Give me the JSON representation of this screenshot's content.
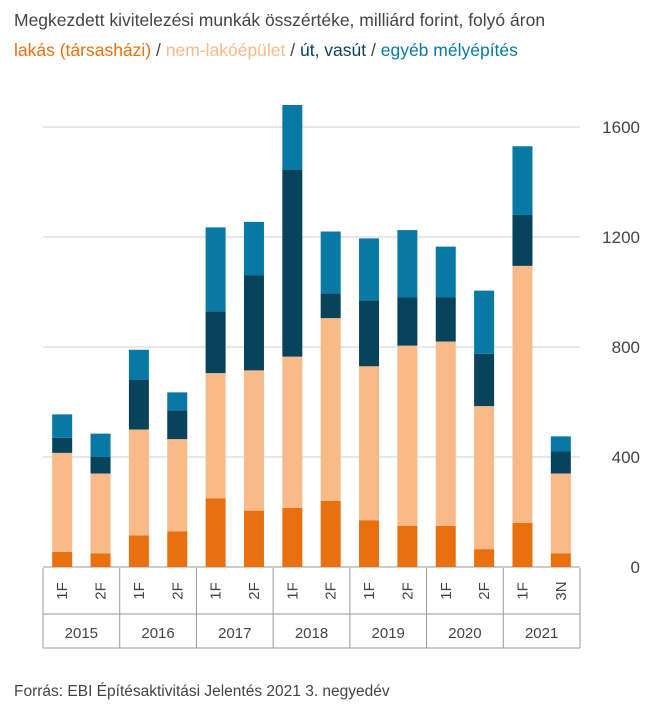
{
  "title": "Megkezdett kivitelezési munkák összértéke, milliárd forint, folyó áron",
  "legend": [
    {
      "label": "lakás (társasházi)",
      "color": "#E8700E"
    },
    {
      "label": "nem-lakóépület",
      "color": "#F8BA88"
    },
    {
      "label": "út, vasút",
      "color": "#07435A"
    },
    {
      "label": "egyéb mélyépítés",
      "color": "#0878A4"
    }
  ],
  "legend_separator": " / ",
  "source": "Forrás: EBI Építésaktivitási Jelentés 2021 3. negyedév",
  "chart_data": {
    "type": "bar",
    "stacked": true,
    "categories": [
      "1F",
      "2F",
      "1F",
      "2F",
      "1F",
      "2F",
      "1F",
      "2F",
      "1F",
      "2F",
      "1F",
      "2F",
      "1F",
      "3N"
    ],
    "groups": [
      {
        "label": "2015",
        "count": 2
      },
      {
        "label": "2016",
        "count": 2
      },
      {
        "label": "2017",
        "count": 2
      },
      {
        "label": "2018",
        "count": 2
      },
      {
        "label": "2019",
        "count": 2
      },
      {
        "label": "2020",
        "count": 2
      },
      {
        "label": "2021",
        "count": 2
      }
    ],
    "series": [
      {
        "name": "lakás (társasházi)",
        "color": "#E8700E",
        "values": [
          55,
          50,
          115,
          130,
          250,
          205,
          215,
          240,
          170,
          150,
          150,
          65,
          160,
          50
        ]
      },
      {
        "name": "nem-lakóépület",
        "color": "#F8BA88",
        "values": [
          360,
          290,
          385,
          335,
          455,
          510,
          550,
          665,
          560,
          655,
          670,
          520,
          935,
          290
        ]
      },
      {
        "name": "út, vasút",
        "color": "#07435A",
        "values": [
          55,
          60,
          180,
          105,
          225,
          345,
          680,
          90,
          240,
          175,
          160,
          190,
          185,
          80
        ]
      },
      {
        "name": "egyéb mélyépítés",
        "color": "#0878A4",
        "values": [
          85,
          85,
          110,
          65,
          305,
          195,
          235,
          225,
          225,
          245,
          185,
          230,
          250,
          55
        ]
      }
    ],
    "yticks": [
      0,
      400,
      800,
      1200,
      1600
    ],
    "ylim": [
      0,
      1600
    ],
    "grid": true,
    "y_axis_side": "right"
  }
}
